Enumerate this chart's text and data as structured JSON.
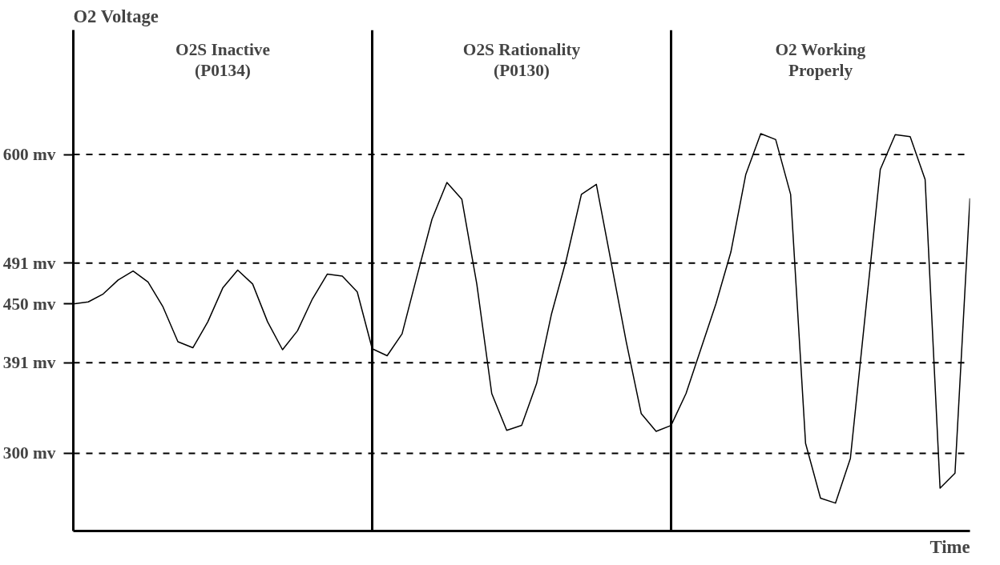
{
  "chart_data": {
    "type": "line",
    "xlabel": "Time",
    "ylabel": "O2 Voltage",
    "categories": [
      null,
      null,
      null,
      null,
      null,
      null,
      null,
      null,
      null,
      null,
      null,
      null,
      null,
      null,
      null,
      null,
      null,
      null,
      null,
      null,
      null,
      null,
      null,
      null,
      null,
      null,
      null,
      null,
      null,
      null,
      null,
      null,
      null,
      null,
      null,
      null,
      null,
      null,
      null,
      null,
      null,
      null,
      null,
      null,
      null,
      null,
      null,
      null,
      null,
      null,
      null,
      null,
      null,
      null,
      null,
      null,
      null,
      null,
      null,
      null,
      null
    ],
    "values": [
      450,
      452,
      460,
      474,
      483,
      472,
      447,
      412,
      406,
      432,
      466,
      484,
      470,
      432,
      404,
      423,
      455,
      480,
      478,
      462,
      405,
      398,
      420,
      478,
      535,
      572,
      555,
      470,
      360,
      323,
      328,
      370,
      440,
      495,
      560,
      570,
      491,
      412,
      340,
      322,
      328,
      360,
      405,
      450,
      502,
      580,
      621,
      615,
      560,
      310,
      255,
      250,
      295,
      440,
      585,
      620,
      618,
      575,
      265,
      280,
      556
    ],
    "color": "#000000",
    "ylim": [
      222,
      725
    ],
    "yticks": [
      {
        "value": 600,
        "label": "600 mv"
      },
      {
        "value": 491,
        "label": "491 mv"
      },
      {
        "value": 450,
        "label": "450 mv"
      },
      {
        "value": 391,
        "label": "391 mv"
      },
      {
        "value": 300,
        "label": "300 mv"
      }
    ],
    "tick_labels": "y",
    "grid": false,
    "marker": "none",
    "line_style": "solid",
    "ref_lines": [
      {
        "axis": "y",
        "value": 600,
        "line_style": "dashed",
        "color": "#000000"
      },
      {
        "axis": "y",
        "value": 491,
        "line_style": "dashed",
        "color": "#000000"
      },
      {
        "axis": "y",
        "value": 391,
        "line_style": "dashed",
        "color": "#000000"
      },
      {
        "axis": "y",
        "value": 300,
        "line_style": "dashed",
        "color": "#000000"
      }
    ],
    "annotations": [
      "O2S Inactive\n(P0134)",
      "O2S Rationality\n(P0130)",
      "O2 Working\nProperly"
    ]
  }
}
